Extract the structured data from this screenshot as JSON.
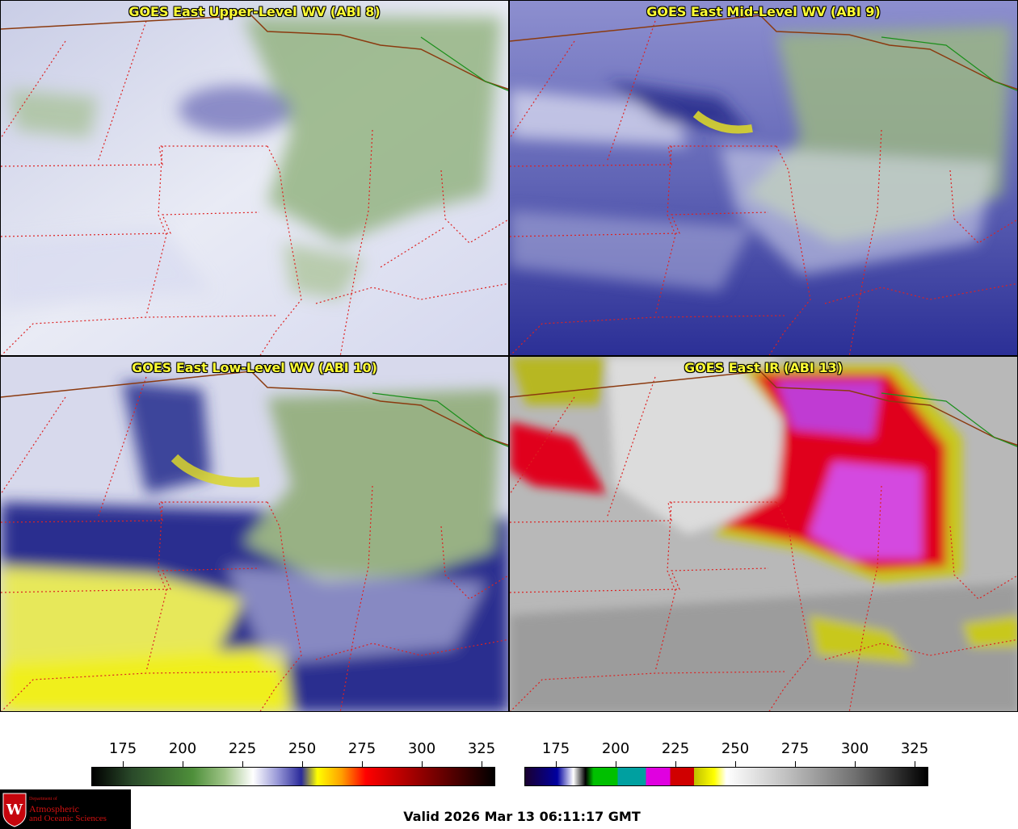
{
  "panels": [
    {
      "title": "GOES East Upper-Level WV (ABI 8)"
    },
    {
      "title": "GOES East Mid-Level WV (ABI 9)"
    },
    {
      "title": "GOES East Low-Level WV (ABI 10)"
    },
    {
      "title": "GOES East IR (ABI 13)"
    }
  ],
  "colorbars": {
    "wv": {
      "ticks": [
        "175",
        "200",
        "225",
        "250",
        "275",
        "300",
        "325"
      ]
    },
    "ir": {
      "ticks": [
        "175",
        "200",
        "225",
        "250",
        "275",
        "300",
        "325"
      ]
    }
  },
  "logo": {
    "dept": "Department of",
    "line1": "Atmospheric",
    "line2": "and Oceanic Sciences"
  },
  "valid_time": "Valid 2026 Mar 13 06:11:17 GMT",
  "colors": {
    "state_border": "#dd2222",
    "country_border": "#8b3a0f",
    "lake_border": "#1a8f1a",
    "title_text": "#ffff33"
  }
}
